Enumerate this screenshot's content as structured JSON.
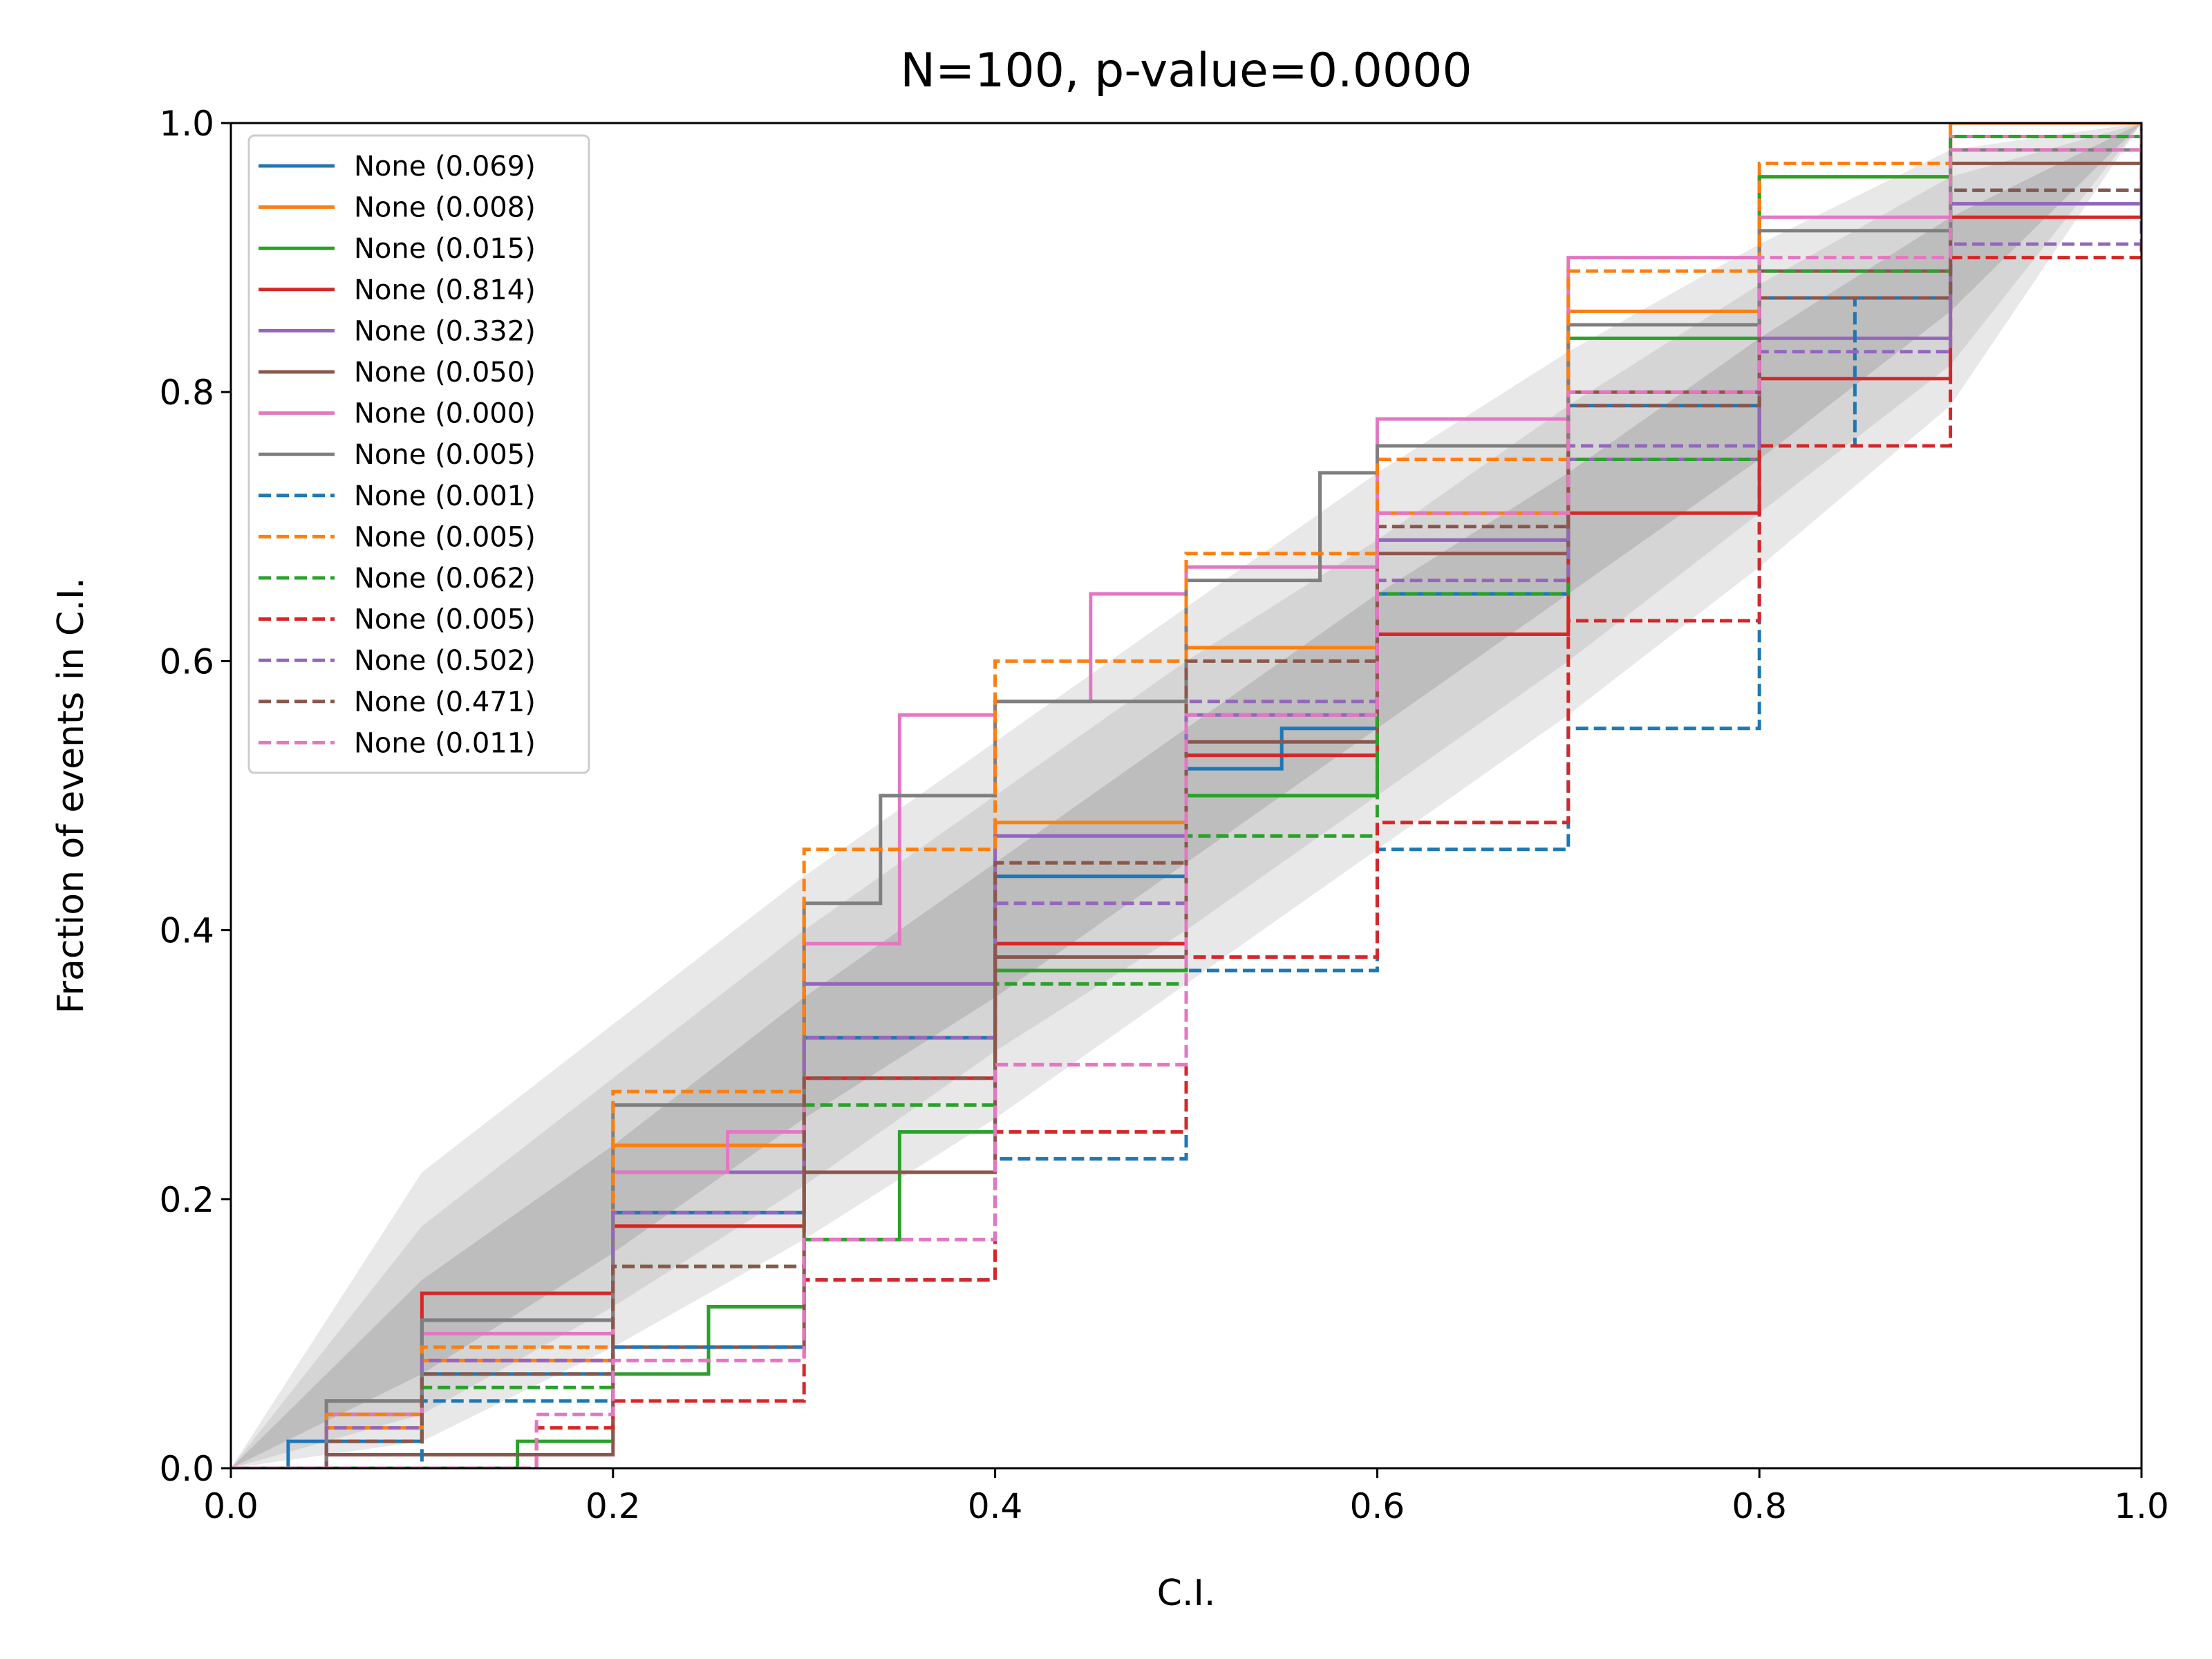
{
  "chart_data": {
    "type": "line",
    "title": "N=100, p-value=0.0000",
    "xlabel": "C.I.",
    "ylabel": "Fraction of events in C.I.",
    "xlim": [
      0.0,
      1.0
    ],
    "ylim": [
      0.0,
      1.0
    ],
    "xticks": [
      "0.0",
      "0.2",
      "0.4",
      "0.6",
      "0.8",
      "1.0"
    ],
    "yticks": [
      "0.0",
      "0.2",
      "0.4",
      "0.6",
      "0.8",
      "1.0"
    ],
    "grid": false,
    "legend_position": "top-left",
    "confidence_bands": [
      {
        "level": "1-sigma",
        "color": "#bdbdbd",
        "lower": [
          [
            0,
            0
          ],
          [
            0.1,
            0.07
          ],
          [
            0.2,
            0.16
          ],
          [
            0.3,
            0.26
          ],
          [
            0.4,
            0.35
          ],
          [
            0.5,
            0.45
          ],
          [
            0.6,
            0.55
          ],
          [
            0.7,
            0.65
          ],
          [
            0.8,
            0.75
          ],
          [
            0.9,
            0.86
          ],
          [
            1,
            1
          ]
        ],
        "upper": [
          [
            0,
            0
          ],
          [
            0.1,
            0.14
          ],
          [
            0.2,
            0.24
          ],
          [
            0.3,
            0.35
          ],
          [
            0.4,
            0.45
          ],
          [
            0.5,
            0.55
          ],
          [
            0.6,
            0.65
          ],
          [
            0.7,
            0.74
          ],
          [
            0.8,
            0.84
          ],
          [
            0.9,
            0.93
          ],
          [
            1,
            1
          ]
        ]
      },
      {
        "level": "2-sigma",
        "color": "#d5d5d5",
        "lower": [
          [
            0,
            0
          ],
          [
            0.1,
            0.04
          ],
          [
            0.2,
            0.12
          ],
          [
            0.3,
            0.21
          ],
          [
            0.4,
            0.31
          ],
          [
            0.5,
            0.4
          ],
          [
            0.6,
            0.5
          ],
          [
            0.7,
            0.6
          ],
          [
            0.8,
            0.71
          ],
          [
            0.9,
            0.82
          ],
          [
            1,
            1
          ]
        ],
        "upper": [
          [
            0,
            0
          ],
          [
            0.1,
            0.18
          ],
          [
            0.2,
            0.29
          ],
          [
            0.3,
            0.4
          ],
          [
            0.4,
            0.5
          ],
          [
            0.5,
            0.6
          ],
          [
            0.6,
            0.69
          ],
          [
            0.7,
            0.79
          ],
          [
            0.8,
            0.88
          ],
          [
            0.9,
            0.96
          ],
          [
            1,
            1
          ]
        ]
      },
      {
        "level": "3-sigma",
        "color": "#e8e8e8",
        "lower": [
          [
            0,
            0
          ],
          [
            0.1,
            0.02
          ],
          [
            0.2,
            0.09
          ],
          [
            0.3,
            0.17
          ],
          [
            0.4,
            0.26
          ],
          [
            0.5,
            0.36
          ],
          [
            0.6,
            0.46
          ],
          [
            0.7,
            0.56
          ],
          [
            0.8,
            0.67
          ],
          [
            0.9,
            0.79
          ],
          [
            1,
            1
          ]
        ],
        "upper": [
          [
            0,
            0
          ],
          [
            0.1,
            0.22
          ],
          [
            0.2,
            0.33
          ],
          [
            0.3,
            0.44
          ],
          [
            0.4,
            0.54
          ],
          [
            0.5,
            0.64
          ],
          [
            0.6,
            0.74
          ],
          [
            0.7,
            0.83
          ],
          [
            0.8,
            0.91
          ],
          [
            0.9,
            0.98
          ],
          [
            1,
            1
          ]
        ]
      }
    ],
    "series": [
      {
        "name": "None (0.069)",
        "color": "#1f77b4",
        "dash": false,
        "points": [
          [
            0,
            0
          ],
          [
            0.03,
            0.02
          ],
          [
            0.1,
            0.07
          ],
          [
            0.2,
            0.19
          ],
          [
            0.3,
            0.32
          ],
          [
            0.4,
            0.44
          ],
          [
            0.5,
            0.52
          ],
          [
            0.55,
            0.55
          ],
          [
            0.6,
            0.65
          ],
          [
            0.7,
            0.79
          ],
          [
            0.8,
            0.87
          ],
          [
            0.9,
            0.94
          ],
          [
            1,
            1
          ]
        ]
      },
      {
        "name": "None (0.008)",
        "color": "#ff7f0e",
        "dash": false,
        "points": [
          [
            0,
            0
          ],
          [
            0.05,
            0.03
          ],
          [
            0.1,
            0.08
          ],
          [
            0.2,
            0.24
          ],
          [
            0.3,
            0.36
          ],
          [
            0.4,
            0.48
          ],
          [
            0.5,
            0.61
          ],
          [
            0.6,
            0.71
          ],
          [
            0.7,
            0.86
          ],
          [
            0.8,
            0.96
          ],
          [
            0.9,
            1.0
          ],
          [
            1,
            1
          ]
        ]
      },
      {
        "name": "None (0.015)",
        "color": "#2ca02c",
        "dash": false,
        "points": [
          [
            0,
            0
          ],
          [
            0.05,
            0.0
          ],
          [
            0.15,
            0.02
          ],
          [
            0.2,
            0.07
          ],
          [
            0.25,
            0.12
          ],
          [
            0.3,
            0.17
          ],
          [
            0.35,
            0.25
          ],
          [
            0.4,
            0.37
          ],
          [
            0.5,
            0.5
          ],
          [
            0.6,
            0.69
          ],
          [
            0.7,
            0.84
          ],
          [
            0.8,
            0.96
          ],
          [
            0.9,
            0.99
          ],
          [
            1,
            1
          ]
        ]
      },
      {
        "name": "None (0.814)",
        "color": "#d62728",
        "dash": false,
        "points": [
          [
            0,
            0
          ],
          [
            0.05,
            0.04
          ],
          [
            0.1,
            0.13
          ],
          [
            0.2,
            0.18
          ],
          [
            0.3,
            0.29
          ],
          [
            0.4,
            0.39
          ],
          [
            0.5,
            0.53
          ],
          [
            0.6,
            0.62
          ],
          [
            0.7,
            0.71
          ],
          [
            0.8,
            0.81
          ],
          [
            0.9,
            0.93
          ],
          [
            1,
            1
          ]
        ]
      },
      {
        "name": "None (0.332)",
        "color": "#9467bd",
        "dash": false,
        "points": [
          [
            0,
            0
          ],
          [
            0.05,
            0.05
          ],
          [
            0.1,
            0.11
          ],
          [
            0.2,
            0.22
          ],
          [
            0.3,
            0.36
          ],
          [
            0.4,
            0.47
          ],
          [
            0.5,
            0.56
          ],
          [
            0.6,
            0.69
          ],
          [
            0.7,
            0.75
          ],
          [
            0.8,
            0.84
          ],
          [
            0.9,
            0.94
          ],
          [
            1,
            1
          ]
        ]
      },
      {
        "name": "None (0.050)",
        "color": "#8c564b",
        "dash": false,
        "points": [
          [
            0,
            0
          ],
          [
            0.05,
            0.01
          ],
          [
            0.1,
            0.01
          ],
          [
            0.2,
            0.09
          ],
          [
            0.3,
            0.22
          ],
          [
            0.4,
            0.38
          ],
          [
            0.5,
            0.54
          ],
          [
            0.6,
            0.68
          ],
          [
            0.7,
            0.8
          ],
          [
            0.8,
            0.89
          ],
          [
            0.9,
            0.97
          ],
          [
            1,
            1
          ]
        ]
      },
      {
        "name": "None (0.000)",
        "color": "#e377c2",
        "dash": false,
        "points": [
          [
            0,
            0
          ],
          [
            0.05,
            0.04
          ],
          [
            0.1,
            0.1
          ],
          [
            0.2,
            0.22
          ],
          [
            0.26,
            0.25
          ],
          [
            0.3,
            0.39
          ],
          [
            0.35,
            0.56
          ],
          [
            0.4,
            0.57
          ],
          [
            0.45,
            0.65
          ],
          [
            0.5,
            0.67
          ],
          [
            0.6,
            0.78
          ],
          [
            0.7,
            0.9
          ],
          [
            0.8,
            0.93
          ],
          [
            0.9,
            0.99
          ],
          [
            1,
            1
          ]
        ]
      },
      {
        "name": "None (0.005)",
        "color": "#7f7f7f",
        "dash": false,
        "points": [
          [
            0,
            0
          ],
          [
            0.05,
            0.05
          ],
          [
            0.1,
            0.11
          ],
          [
            0.2,
            0.27
          ],
          [
            0.3,
            0.42
          ],
          [
            0.34,
            0.5
          ],
          [
            0.4,
            0.57
          ],
          [
            0.5,
            0.66
          ],
          [
            0.57,
            0.74
          ],
          [
            0.6,
            0.76
          ],
          [
            0.7,
            0.85
          ],
          [
            0.8,
            0.92
          ],
          [
            0.9,
            0.98
          ],
          [
            1,
            1
          ]
        ]
      },
      {
        "name": "None (0.001)",
        "color": "#1f77b4",
        "dash": true,
        "points": [
          [
            0,
            0
          ],
          [
            0.1,
            0.05
          ],
          [
            0.2,
            0.09
          ],
          [
            0.3,
            0.14
          ],
          [
            0.4,
            0.23
          ],
          [
            0.5,
            0.37
          ],
          [
            0.6,
            0.46
          ],
          [
            0.7,
            0.55
          ],
          [
            0.8,
            0.76
          ],
          [
            0.85,
            0.87
          ],
          [
            0.9,
            0.95
          ],
          [
            1,
            1
          ]
        ]
      },
      {
        "name": "None (0.005)",
        "color": "#ff7f0e",
        "dash": true,
        "points": [
          [
            0,
            0
          ],
          [
            0.05,
            0.04
          ],
          [
            0.1,
            0.09
          ],
          [
            0.2,
            0.28
          ],
          [
            0.3,
            0.46
          ],
          [
            0.4,
            0.6
          ],
          [
            0.5,
            0.68
          ],
          [
            0.6,
            0.75
          ],
          [
            0.7,
            0.89
          ],
          [
            0.8,
            0.97
          ],
          [
            0.9,
            1.0
          ],
          [
            1,
            1
          ]
        ]
      },
      {
        "name": "None (0.062)",
        "color": "#2ca02c",
        "dash": true,
        "points": [
          [
            0,
            0
          ],
          [
            0.05,
            0.02
          ],
          [
            0.1,
            0.06
          ],
          [
            0.2,
            0.15
          ],
          [
            0.3,
            0.27
          ],
          [
            0.4,
            0.36
          ],
          [
            0.5,
            0.47
          ],
          [
            0.6,
            0.65
          ],
          [
            0.7,
            0.75
          ],
          [
            0.8,
            0.89
          ],
          [
            0.9,
            0.99
          ],
          [
            1,
            1
          ]
        ]
      },
      {
        "name": "None (0.005)",
        "color": "#d62728",
        "dash": true,
        "points": [
          [
            0,
            0
          ],
          [
            0.1,
            0.0
          ],
          [
            0.16,
            0.03
          ],
          [
            0.2,
            0.05
          ],
          [
            0.3,
            0.14
          ],
          [
            0.4,
            0.25
          ],
          [
            0.5,
            0.38
          ],
          [
            0.6,
            0.48
          ],
          [
            0.7,
            0.63
          ],
          [
            0.8,
            0.76
          ],
          [
            0.9,
            0.9
          ],
          [
            1,
            1
          ]
        ]
      },
      {
        "name": "None (0.502)",
        "color": "#9467bd",
        "dash": true,
        "points": [
          [
            0,
            0
          ],
          [
            0.05,
            0.03
          ],
          [
            0.1,
            0.08
          ],
          [
            0.2,
            0.19
          ],
          [
            0.3,
            0.32
          ],
          [
            0.4,
            0.42
          ],
          [
            0.5,
            0.57
          ],
          [
            0.6,
            0.66
          ],
          [
            0.7,
            0.76
          ],
          [
            0.8,
            0.83
          ],
          [
            0.9,
            0.91
          ],
          [
            1,
            1
          ]
        ]
      },
      {
        "name": "None (0.471)",
        "color": "#8c564b",
        "dash": true,
        "points": [
          [
            0,
            0
          ],
          [
            0.05,
            0.02
          ],
          [
            0.1,
            0.07
          ],
          [
            0.2,
            0.15
          ],
          [
            0.3,
            0.29
          ],
          [
            0.4,
            0.45
          ],
          [
            0.5,
            0.6
          ],
          [
            0.6,
            0.7
          ],
          [
            0.7,
            0.79
          ],
          [
            0.8,
            0.87
          ],
          [
            0.9,
            0.95
          ],
          [
            1,
            1
          ]
        ]
      },
      {
        "name": "None (0.011)",
        "color": "#e377c2",
        "dash": true,
        "points": [
          [
            0,
            0
          ],
          [
            0.12,
            0.0
          ],
          [
            0.16,
            0.04
          ],
          [
            0.2,
            0.08
          ],
          [
            0.3,
            0.17
          ],
          [
            0.4,
            0.3
          ],
          [
            0.5,
            0.56
          ],
          [
            0.6,
            0.71
          ],
          [
            0.7,
            0.8
          ],
          [
            0.8,
            0.9
          ],
          [
            0.9,
            0.98
          ],
          [
            1,
            1
          ]
        ]
      }
    ]
  }
}
